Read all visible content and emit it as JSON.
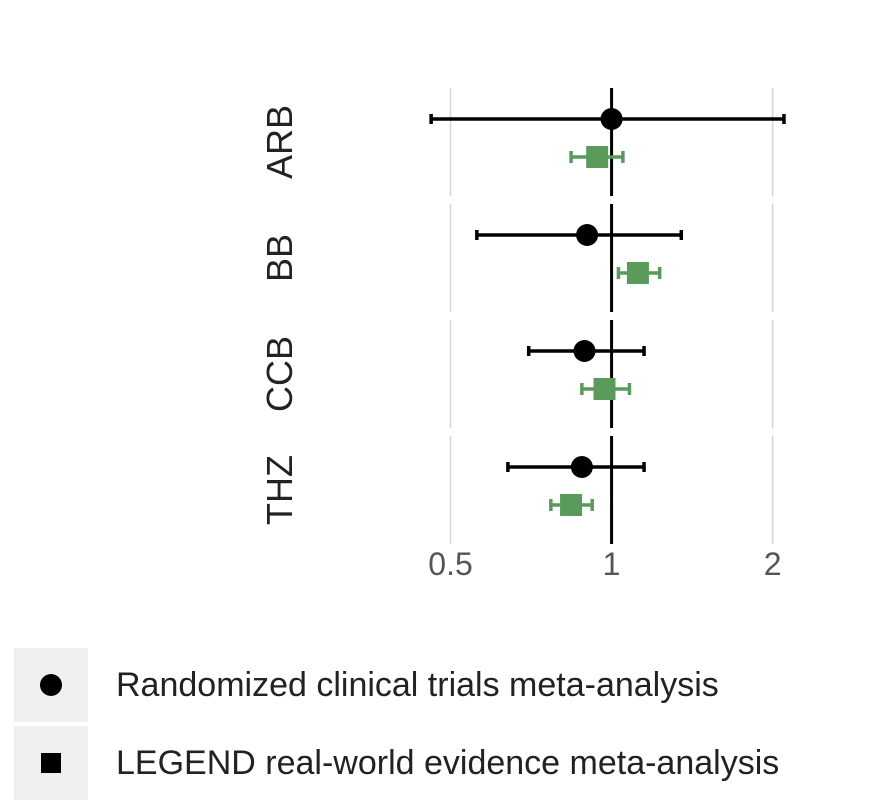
{
  "chart_data": {
    "type": "forest",
    "x_scale": "log",
    "xlim": [
      0.42,
      2.25
    ],
    "xticks": [
      0.5,
      1,
      2
    ],
    "xtick_labels": [
      "0.5",
      "1",
      "2"
    ],
    "reference_line": 1,
    "grid": true,
    "categories": [
      "ARB",
      "BB",
      "CCB",
      "THZ"
    ],
    "series": [
      {
        "name": "Randomized clinical trials meta-analysis",
        "marker": "circle",
        "color": "#000000",
        "estimates": [
          1.0,
          0.9,
          0.89,
          0.88
        ],
        "lower": [
          0.46,
          0.56,
          0.7,
          0.64
        ],
        "upper": [
          2.1,
          1.35,
          1.15,
          1.15
        ]
      },
      {
        "name": "LEGEND real-world evidence meta-analysis",
        "marker": "square",
        "color": "#5a9a5a",
        "estimates": [
          0.94,
          1.12,
          0.97,
          0.84
        ],
        "lower": [
          0.84,
          1.03,
          0.88,
          0.77
        ],
        "upper": [
          1.05,
          1.23,
          1.08,
          0.92
        ]
      }
    ],
    "legend_position": "bottom-left"
  }
}
